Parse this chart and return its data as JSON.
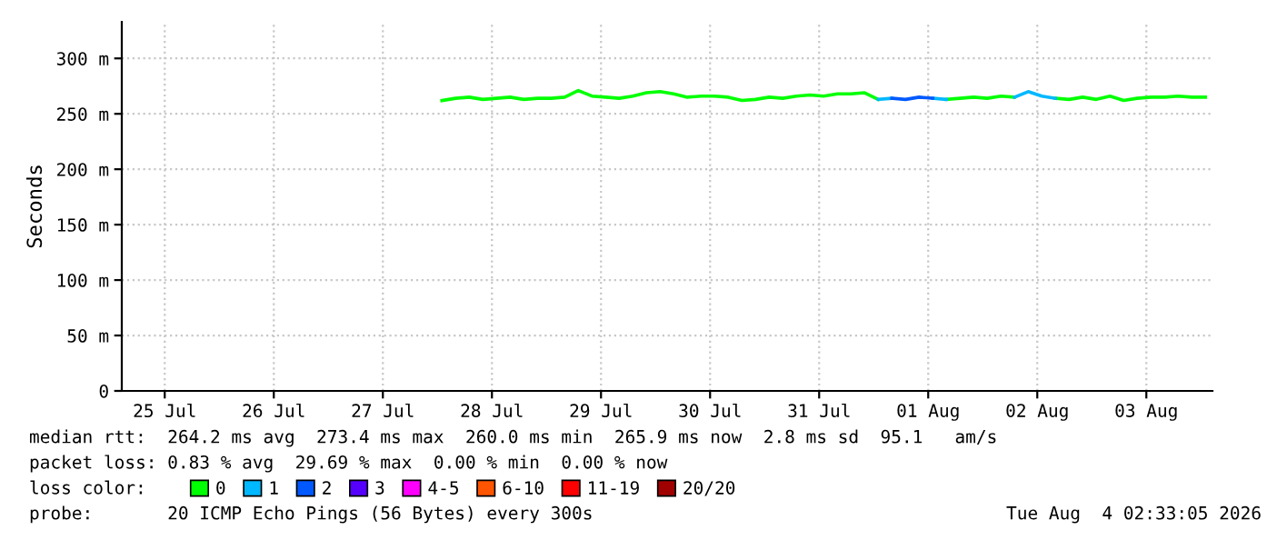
{
  "chart_data": {
    "type": "line",
    "ylabel": "Seconds",
    "x": [
      "2026-07-28T01:00",
      "2026-07-28T04:00",
      "2026-07-28T07:00",
      "2026-07-28T10:00",
      "2026-07-28T13:00",
      "2026-07-28T16:00",
      "2026-07-28T19:00",
      "2026-07-28T22:00",
      "2026-07-29T01:00",
      "2026-07-29T04:00",
      "2026-07-29T07:00",
      "2026-07-29T10:00",
      "2026-07-29T13:00",
      "2026-07-29T16:00",
      "2026-07-29T19:00",
      "2026-07-29T22:00",
      "2026-07-30T01:00",
      "2026-07-30T04:00",
      "2026-07-30T07:00",
      "2026-07-30T10:00",
      "2026-07-30T13:00",
      "2026-07-30T16:00",
      "2026-07-30T19:00",
      "2026-07-30T22:00",
      "2026-07-31T01:00",
      "2026-07-31T04:00",
      "2026-07-31T07:00",
      "2026-07-31T10:00",
      "2026-07-31T13:00",
      "2026-07-31T16:00",
      "2026-07-31T19:00",
      "2026-07-31T22:00",
      "2026-08-01T01:00",
      "2026-08-01T04:00",
      "2026-08-01T07:00",
      "2026-08-01T10:00",
      "2026-08-01T13:00",
      "2026-08-01T16:00",
      "2026-08-01T19:00",
      "2026-08-01T22:00",
      "2026-08-02T01:00",
      "2026-08-02T04:00",
      "2026-08-02T07:00",
      "2026-08-02T10:00",
      "2026-08-02T13:00",
      "2026-08-02T16:00",
      "2026-08-02T19:00",
      "2026-08-02T22:00",
      "2026-08-03T01:00",
      "2026-08-03T04:00",
      "2026-08-03T07:00",
      "2026-08-03T10:00",
      "2026-08-03T13:00",
      "2026-08-03T16:00",
      "2026-08-03T19:00",
      "2026-08-03T22:00",
      "2026-08-04T01:00"
    ],
    "series": [
      {
        "name": "0",
        "color": "#00ff00",
        "values": [
          262,
          264,
          265,
          263,
          264,
          265,
          263,
          264,
          264,
          265,
          271,
          266,
          265,
          264,
          266,
          269,
          270,
          268,
          265,
          266,
          266,
          265,
          262,
          263,
          265,
          264,
          266,
          267,
          266,
          268,
          268,
          269,
          263,
          null,
          null,
          null,
          null,
          263,
          264,
          265,
          264,
          266,
          265,
          null,
          null,
          264,
          263,
          265,
          263,
          266,
          262,
          264,
          265,
          265,
          266,
          265,
          265
        ]
      },
      {
        "name": "1",
        "color": "#00b8ff",
        "values": [
          null,
          null,
          null,
          null,
          null,
          null,
          null,
          null,
          null,
          null,
          null,
          null,
          null,
          null,
          null,
          null,
          null,
          null,
          null,
          null,
          null,
          null,
          null,
          null,
          null,
          null,
          null,
          null,
          null,
          null,
          null,
          null,
          263,
          264,
          null,
          null,
          264,
          263,
          null,
          null,
          null,
          null,
          265,
          270,
          266,
          264,
          null,
          null,
          null,
          null,
          null,
          null,
          null,
          null,
          null,
          null,
          null
        ]
      },
      {
        "name": "2",
        "color": "#0059ff",
        "values": [
          null,
          null,
          null,
          null,
          null,
          null,
          null,
          null,
          null,
          null,
          null,
          null,
          null,
          null,
          null,
          null,
          null,
          null,
          null,
          null,
          null,
          null,
          null,
          null,
          null,
          null,
          null,
          null,
          null,
          null,
          null,
          null,
          null,
          264,
          263,
          265,
          264,
          null,
          null,
          null,
          null,
          null,
          null,
          null,
          null,
          null,
          null,
          null,
          null,
          null,
          null,
          null,
          null,
          null,
          null,
          null,
          null
        ]
      },
      {
        "name": "3",
        "color": "#5500ff",
        "values": [
          null,
          null,
          null,
          null,
          null,
          null,
          null,
          null,
          null,
          null,
          null,
          null,
          null,
          null,
          null,
          null,
          null,
          null,
          null,
          null,
          null,
          null,
          null,
          null,
          null,
          null,
          null,
          null,
          null,
          null,
          null,
          null,
          null,
          null,
          null,
          null,
          null,
          null,
          null,
          null,
          null,
          null,
          null,
          null,
          null,
          null,
          null,
          null,
          null,
          null,
          null,
          null,
          null,
          null,
          null,
          null,
          null
        ]
      },
      {
        "name": "4-5",
        "color": "#ff00fe",
        "values": [
          null,
          null,
          null,
          null,
          null,
          null,
          null,
          null,
          null,
          null,
          null,
          null,
          null,
          null,
          null,
          null,
          null,
          null,
          null,
          null,
          null,
          null,
          null,
          null,
          null,
          null,
          null,
          null,
          null,
          null,
          null,
          null,
          null,
          null,
          null,
          null,
          null,
          null,
          null,
          null,
          null,
          null,
          null,
          null,
          null,
          null,
          null,
          null,
          null,
          null,
          null,
          null,
          null,
          null,
          null,
          null,
          null
        ]
      },
      {
        "name": "6-10",
        "color": "#ff5500",
        "values": [
          null,
          null,
          null,
          null,
          null,
          null,
          null,
          null,
          null,
          null,
          null,
          null,
          null,
          null,
          null,
          null,
          null,
          null,
          null,
          null,
          null,
          null,
          null,
          null,
          null,
          null,
          null,
          null,
          null,
          null,
          null,
          null,
          null,
          null,
          null,
          null,
          null,
          null,
          null,
          null,
          null,
          null,
          null,
          null,
          null,
          null,
          null,
          null,
          null,
          null,
          null,
          null,
          null,
          null,
          null,
          null,
          null
        ]
      },
      {
        "name": "11-19",
        "color": "#ff0000",
        "values": [
          null,
          null,
          null,
          null,
          null,
          null,
          null,
          null,
          null,
          null,
          null,
          null,
          null,
          null,
          null,
          null,
          null,
          null,
          null,
          null,
          null,
          null,
          null,
          null,
          null,
          null,
          null,
          null,
          null,
          null,
          null,
          null,
          null,
          null,
          null,
          null,
          null,
          null,
          null,
          null,
          null,
          null,
          null,
          null,
          null,
          null,
          null,
          null,
          null,
          null,
          null,
          null,
          null,
          null,
          null,
          null,
          null
        ]
      },
      {
        "name": "20/20",
        "color": "#a10000",
        "values": [
          null,
          null,
          null,
          null,
          null,
          null,
          null,
          null,
          null,
          null,
          null,
          null,
          null,
          null,
          null,
          null,
          null,
          null,
          null,
          null,
          null,
          null,
          null,
          null,
          null,
          null,
          null,
          null,
          null,
          null,
          null,
          null,
          null,
          null,
          null,
          null,
          null,
          null,
          null,
          null,
          null,
          null,
          null,
          null,
          null,
          null,
          null,
          null,
          null,
          null,
          null,
          null,
          null,
          null,
          null,
          null,
          null
        ]
      }
    ],
    "legend_title": "loss color:",
    "legend": "bottom",
    "xlim": [
      "2026-07-25T02:33",
      "2026-08-04T02:33"
    ],
    "xticks": [
      {
        "value": "2026-07-25T12:00",
        "label": "25 Jul"
      },
      {
        "value": "2026-07-26T12:00",
        "label": "26 Jul"
      },
      {
        "value": "2026-07-27T12:00",
        "label": "27 Jul"
      },
      {
        "value": "2026-07-28T12:00",
        "label": "28 Jul"
      },
      {
        "value": "2026-07-29T12:00",
        "label": "29 Jul"
      },
      {
        "value": "2026-07-30T12:00",
        "label": "30 Jul"
      },
      {
        "value": "2026-07-31T12:00",
        "label": "31 Jul"
      },
      {
        "value": "2026-08-01T12:00",
        "label": "01 Aug"
      },
      {
        "value": "2026-08-02T12:00",
        "label": "02 Aug"
      },
      {
        "value": "2026-08-03T12:00",
        "label": "03 Aug"
      }
    ],
    "ylim": [
      0,
      333
    ],
    "yticks": [
      0,
      {
        "value": 50,
        "label": "50 m"
      },
      {
        "value": 100,
        "label": "100 m"
      },
      {
        "value": 150,
        "label": "150 m"
      },
      {
        "value": 200,
        "label": "200 m"
      },
      {
        "value": 250,
        "label": "250 m"
      },
      {
        "value": 300,
        "label": "300 m"
      }
    ],
    "grid": true,
    "annotations": [
      "median rtt:  264.2 ms avg  273.4 ms max  260.0 ms min  265.9 ms now  2.8 ms sd  95.1   am/s",
      "packet loss: 0.83 % avg  29.69 % max  0.00 % min  0.00 % now",
      "probe:       20 ICMP Echo Pings (56 Bytes) every 300s",
      "Tue Aug  4 02:33:05 2026"
    ]
  }
}
